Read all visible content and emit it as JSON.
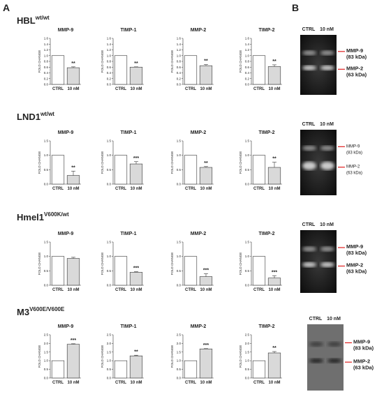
{
  "panel_labels": [
    "A",
    "B"
  ],
  "cell_lines": [
    {
      "name": "HBL",
      "genotype": "wt/wt",
      "gel": {
        "lanes": [
          "CTRL",
          "10 nM"
        ],
        "bands": [
          {
            "name": "MMP-9",
            "size": "(83 kDa)"
          },
          {
            "name": "MMP-2",
            "size": "(63 kDa)"
          }
        ]
      }
    },
    {
      "name": "LND1",
      "genotype": "wt/wt",
      "gel": {
        "lanes": [
          "CTRL",
          "10 nM"
        ],
        "bands": [
          {
            "name": "MMP-9",
            "size": "(83 kDa)"
          },
          {
            "name": "MMP-2",
            "size": "(63 kDa)"
          }
        ]
      }
    },
    {
      "name": "Hmel1",
      "genotype": "V600K/wt",
      "gel": {
        "lanes": [
          "CTRL",
          "10 nM"
        ],
        "bands": [
          {
            "name": "MMP-9",
            "size": "(83 kDa)"
          },
          {
            "name": "MMP-2",
            "size": "(63 kDa)"
          }
        ]
      }
    },
    {
      "name": "M3",
      "genotype": "V600E/V600E",
      "gel": {
        "lanes": [
          "CTRL",
          "10 nM"
        ],
        "bands": [
          {
            "name": "MMP-9",
            "size": "(83 kDa)"
          },
          {
            "name": "MMP-2",
            "size": "(63 kDa)"
          }
        ]
      }
    }
  ],
  "chart_data": [
    {
      "type": "bar",
      "title": "MMP-9",
      "y_label": "FOLD CHANGE",
      "categories": [
        "CTRL",
        "10 nM"
      ],
      "values": [
        1,
        0.58
      ],
      "errors": [
        null,
        0.03
      ],
      "significance": "**",
      "colors": [
        "#ffffff",
        "#d9d9d9"
      ],
      "ylim": [
        0,
        1.6
      ],
      "yticks": [
        {
          "value": 0,
          "label": "0.0"
        },
        0.2,
        0.4,
        0.6,
        0.8,
        {
          "value": 1,
          "label": "1.0"
        },
        1.2,
        1.4,
        1.6
      ]
    },
    {
      "type": "bar",
      "title": "TIMP-1",
      "y_label": "FOLD CHANGE",
      "categories": [
        "CTRL",
        "10 nM"
      ],
      "values": [
        1,
        0.6
      ],
      "errors": [
        null,
        0.01
      ],
      "significance": "**",
      "colors": [
        "#ffffff",
        "#d9d9d9"
      ],
      "ylim": [
        0,
        1.6
      ],
      "yticks": [
        {
          "value": 0,
          "label": "0.0"
        },
        0.2,
        0.4,
        0.6,
        0.8,
        {
          "value": 1,
          "label": "1.0"
        },
        1.2,
        1.4,
        1.6
      ]
    },
    {
      "type": "bar",
      "title": "MMP-2",
      "y_label": "FOLD CHANGE",
      "categories": [
        "CTRL",
        "10 nM"
      ],
      "values": [
        1,
        0.65
      ],
      "errors": [
        null,
        0.04
      ],
      "significance": "**",
      "colors": [
        "#ffffff",
        "#d9d9d9"
      ],
      "ylim": [
        0,
        1.6
      ],
      "yticks": [
        {
          "value": 0,
          "label": "0.0"
        },
        0.2,
        0.4,
        0.6,
        0.8,
        {
          "value": 1,
          "label": "1.0"
        },
        1.2,
        1.4,
        1.6
      ]
    },
    {
      "type": "bar",
      "title": "TIMP-2",
      "y_label": "FOLD CHANGE",
      "categories": [
        "CTRL",
        "10 nM"
      ],
      "values": [
        1,
        0.62
      ],
      "errors": [
        null,
        0.06
      ],
      "significance": "**",
      "colors": [
        "#ffffff",
        "#d9d9d9"
      ],
      "ylim": [
        0,
        1.6
      ],
      "yticks": [
        {
          "value": 0,
          "label": "0.0"
        },
        0.2,
        0.4,
        0.6,
        0.8,
        {
          "value": 1,
          "label": "1.0"
        },
        1.2,
        1.4,
        1.6
      ]
    },
    {
      "type": "bar",
      "title": "MMP-9",
      "y_label": "FOLD CHANGE",
      "categories": [
        "CTRL",
        "10 nM"
      ],
      "values": [
        1,
        0.3
      ],
      "errors": [
        null,
        0.15
      ],
      "significance": "**",
      "colors": [
        "#ffffff",
        "#d9d9d9"
      ],
      "ylim": [
        0,
        1.5
      ],
      "yticks": [
        {
          "value": 0,
          "label": "0.0"
        },
        0.5,
        {
          "value": 1,
          "label": "1.0"
        },
        1.5
      ]
    },
    {
      "type": "bar",
      "title": "TIMP-1",
      "y_label": "FOLD CHANGE",
      "categories": [
        "CTRL",
        "10 nM"
      ],
      "values": [
        1,
        0.7
      ],
      "errors": [
        null,
        0.08
      ],
      "significance": "***",
      "colors": [
        "#ffffff",
        "#d9d9d9"
      ],
      "ylim": [
        0,
        1.5
      ],
      "yticks": [
        {
          "value": 0,
          "label": "0.0"
        },
        0.5,
        {
          "value": 1,
          "label": "1.0"
        },
        1.5
      ]
    },
    {
      "type": "bar",
      "title": "MMP-2",
      "y_label": "FOLD CHANGE",
      "categories": [
        "CTRL",
        "10 nM"
      ],
      "values": [
        1,
        0.58
      ],
      "errors": [
        null,
        0.03
      ],
      "significance": "**",
      "colors": [
        "#ffffff",
        "#d9d9d9"
      ],
      "ylim": [
        0,
        1.5
      ],
      "yticks": [
        {
          "value": 0,
          "label": "0.0"
        },
        0.5,
        {
          "value": 1,
          "label": "1.0"
        },
        1.5
      ]
    },
    {
      "type": "bar",
      "title": "TIMP-2",
      "y_label": "FOLD CHANGE",
      "categories": [
        "CTRL",
        "10 nM"
      ],
      "values": [
        1,
        0.58
      ],
      "errors": [
        null,
        0.18
      ],
      "significance": "**",
      "colors": [
        "#ffffff",
        "#d9d9d9"
      ],
      "ylim": [
        0,
        1.5
      ],
      "yticks": [
        {
          "value": 0,
          "label": "0.0"
        },
        0.5,
        {
          "value": 1,
          "label": "1.0"
        },
        1.5
      ]
    },
    {
      "type": "bar",
      "title": "MMP-9",
      "y_label": "FOLD CHANGE",
      "categories": [
        "CTRL",
        "10 nM"
      ],
      "values": [
        1,
        0.93
      ],
      "errors": [
        null,
        0.04
      ],
      "colors": [
        "#ffffff",
        "#d9d9d9"
      ],
      "ylim": [
        0,
        1.5
      ],
      "yticks": [
        {
          "value": 0,
          "label": "0.0"
        },
        0.5,
        {
          "value": 1,
          "label": "1.0"
        },
        1.5
      ]
    },
    {
      "type": "bar",
      "title": "TIMP-1",
      "y_label": "FOLD CHANGE",
      "categories": [
        "CTRL",
        "10 nM"
      ],
      "values": [
        1,
        0.45
      ],
      "errors": [
        null,
        0.02
      ],
      "significance": "***",
      "colors": [
        "#ffffff",
        "#d9d9d9"
      ],
      "ylim": [
        0,
        1.5
      ],
      "yticks": [
        {
          "value": 0,
          "label": "0.0"
        },
        0.5,
        {
          "value": 1,
          "label": "1.0"
        },
        1.5
      ]
    },
    {
      "type": "bar",
      "title": "MMP-2",
      "y_label": "FOLD CHANGE",
      "categories": [
        "CTRL",
        "10 nM"
      ],
      "values": [
        1,
        0.3
      ],
      "errors": [
        null,
        0.1
      ],
      "significance": "***",
      "colors": [
        "#ffffff",
        "#d9d9d9"
      ],
      "ylim": [
        0,
        1.5
      ],
      "yticks": [
        {
          "value": 0,
          "label": "0.0"
        },
        0.5,
        {
          "value": 1,
          "label": "1.0"
        },
        1.5
      ]
    },
    {
      "type": "bar",
      "title": "TIMP-2",
      "y_label": "FOLD CHANGE",
      "categories": [
        "CTRL",
        "10 nM"
      ],
      "values": [
        1,
        0.25
      ],
      "errors": [
        null,
        0.08
      ],
      "significance": "***",
      "colors": [
        "#ffffff",
        "#d9d9d9"
      ],
      "ylim": [
        0,
        1.5
      ],
      "yticks": [
        {
          "value": 0,
          "label": "0.0"
        },
        0.5,
        {
          "value": 1,
          "label": "1.0"
        },
        1.5
      ]
    },
    {
      "type": "bar",
      "title": "MMP-9",
      "y_label": "FOLD CHANGE",
      "categories": [
        "CTRL",
        "10 nM"
      ],
      "values": [
        1,
        1.95
      ],
      "errors": [
        null,
        0.03
      ],
      "significance": "***",
      "colors": [
        "#ffffff",
        "#d9d9d9"
      ],
      "ylim": [
        0,
        2.5
      ],
      "yticks": [
        {
          "value": 0,
          "label": "0.0"
        },
        0.5,
        {
          "value": 1,
          "label": "1.0"
        },
        1.5,
        {
          "value": 2,
          "label": "2.0"
        },
        2.5
      ]
    },
    {
      "type": "bar",
      "title": "TIMP-1",
      "y_label": "FOLD CHANGE",
      "categories": [
        "CTRL",
        "10 nM"
      ],
      "values": [
        1,
        1.28
      ],
      "errors": [
        null,
        0.04
      ],
      "significance": "**",
      "colors": [
        "#ffffff",
        "#d9d9d9"
      ],
      "ylim": [
        0,
        2.5
      ],
      "yticks": [
        {
          "value": 0,
          "label": "0.0"
        },
        0.5,
        {
          "value": 1,
          "label": "1.0"
        },
        1.5,
        {
          "value": 2,
          "label": "2.0"
        },
        2.5
      ]
    },
    {
      "type": "bar",
      "title": "MMP-2",
      "y_label": "FOLD CHANGE",
      "categories": [
        "CTRL",
        "10 nM"
      ],
      "values": [
        1,
        1.68
      ],
      "errors": [
        null,
        0.02
      ],
      "significance": "***",
      "colors": [
        "#ffffff",
        "#d9d9d9"
      ],
      "ylim": [
        0,
        2.5
      ],
      "yticks": [
        {
          "value": 0,
          "label": "0.0"
        },
        0.5,
        {
          "value": 1,
          "label": "1.0"
        },
        1.5,
        {
          "value": 2,
          "label": "2.0"
        },
        2.5
      ]
    },
    {
      "type": "bar",
      "title": "TIMP-2",
      "y_label": "FOLD CHANGE",
      "categories": [
        "CTRL",
        "10 nM"
      ],
      "values": [
        1,
        1.45
      ],
      "errors": [
        null,
        0.08
      ],
      "significance": "**",
      "colors": [
        "#ffffff",
        "#d9d9d9"
      ],
      "ylim": [
        0,
        2.5
      ],
      "yticks": [
        {
          "value": 0,
          "label": "0.0"
        },
        0.5,
        {
          "value": 1,
          "label": "1.0"
        },
        1.5,
        {
          "value": 2,
          "label": "2.0"
        },
        2.5
      ]
    }
  ]
}
